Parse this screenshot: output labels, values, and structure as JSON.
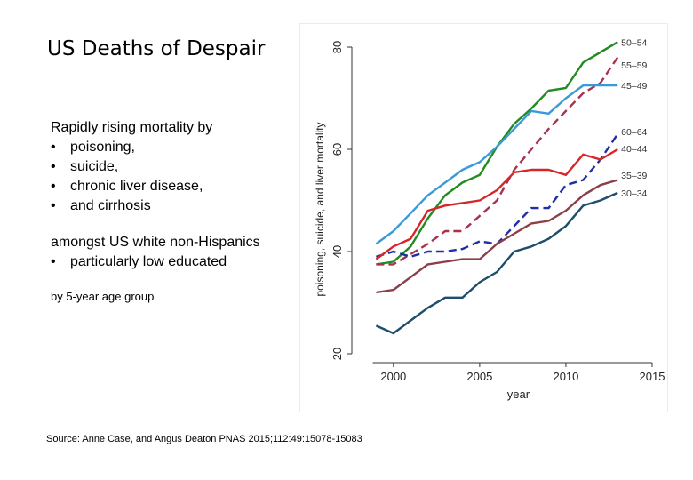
{
  "slide": {
    "title": "US Deaths of Despair",
    "intro": "Rapidly rising mortality by",
    "causes": [
      "poisoning,",
      "suicide,",
      "chronic liver disease,",
      "and cirrhosis"
    ],
    "population": "amongst US white non-Hispanics",
    "population_bullets": [
      "particularly low educated"
    ],
    "grouping_note": "by 5-year age group",
    "source": "Source: Anne Case, and Angus Deaton PNAS 2015;112:49:15078-15083"
  },
  "chart_data": {
    "type": "line",
    "title": "",
    "xlabel": "year",
    "ylabel": "poisoning, suicide, and liver mortality",
    "xlim": [
      1998,
      2015
    ],
    "ylim": [
      20,
      80
    ],
    "xticks": [
      2000,
      2005,
      2010,
      2015
    ],
    "yticks": [
      20,
      40,
      60,
      80
    ],
    "x": [
      1999,
      2000,
      2001,
      2002,
      2003,
      2004,
      2005,
      2006,
      2007,
      2008,
      2009,
      2010,
      2011,
      2012,
      2013
    ],
    "series": [
      {
        "name": "50–54",
        "color": "#228b22",
        "dash": "solid",
        "values": [
          37.5,
          38,
          41,
          46.5,
          51,
          53.5,
          55,
          60.5,
          65,
          68,
          71.5,
          72,
          77,
          79,
          81
        ]
      },
      {
        "name": "55–59",
        "color": "#a8324e",
        "dash": "dashed",
        "values": [
          37.5,
          37.5,
          39.5,
          41.5,
          44,
          44,
          47,
          50,
          56,
          60,
          64,
          67.5,
          71,
          73,
          78
        ]
      },
      {
        "name": "45–49",
        "color": "#3a9ad9",
        "dash": "solid",
        "values": [
          41.5,
          44,
          47.5,
          51,
          53.5,
          56,
          57.5,
          60.5,
          64,
          67.5,
          67,
          70,
          72.5,
          72.5,
          72.5
        ]
      },
      {
        "name": "60–64",
        "color": "#1f2fa5",
        "dash": "dashed",
        "values": [
          39,
          40,
          39,
          40,
          40,
          40.5,
          42,
          41.5,
          45,
          48.5,
          48.5,
          53,
          54,
          58,
          63
        ]
      },
      {
        "name": "40–44",
        "color": "#d62728",
        "dash": "solid",
        "values": [
          38.5,
          41,
          42.5,
          48,
          49,
          49.5,
          50,
          52,
          55.5,
          56,
          56,
          55,
          59,
          58,
          60
        ]
      },
      {
        "name": "35–39",
        "color": "#8b4049",
        "dash": "solid",
        "values": [
          32,
          32.5,
          35,
          37.5,
          38,
          38.5,
          38.5,
          41.5,
          43.5,
          45.5,
          46,
          48,
          51,
          53,
          54
        ]
      },
      {
        "name": "30–34",
        "color": "#1f4e6b",
        "dash": "solid",
        "values": [
          25.5,
          24,
          26.5,
          29,
          31,
          31,
          34,
          36,
          40,
          41,
          42.5,
          45,
          49,
          50,
          51.5
        ]
      }
    ]
  }
}
